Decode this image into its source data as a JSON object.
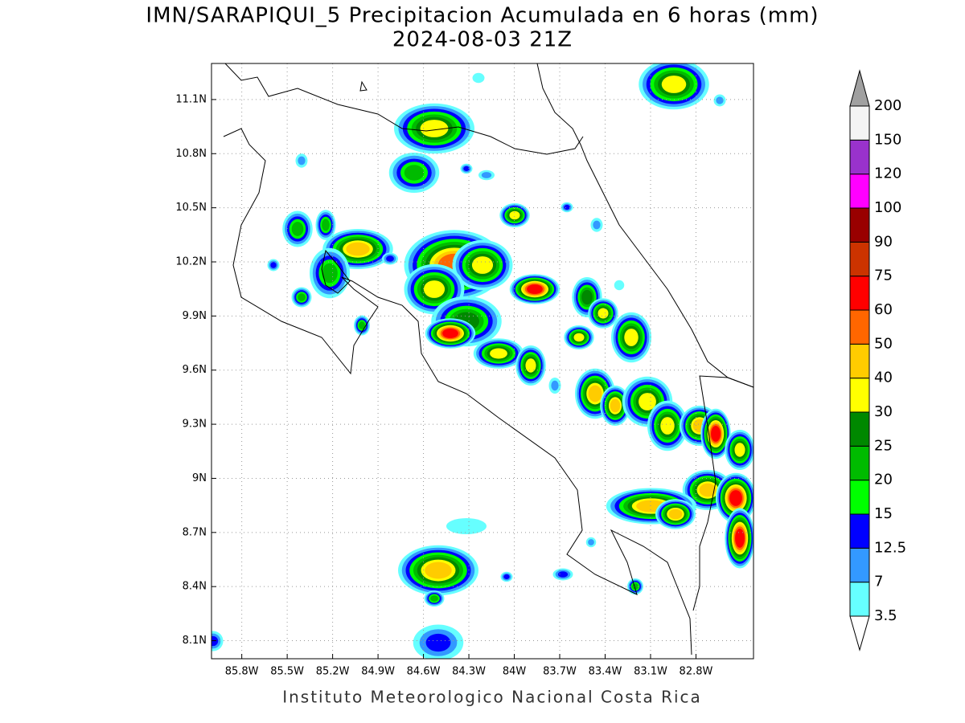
{
  "map": {
    "title": "IMN/SARAPIQUI_5 Precipitacion Acumulada en 6 horas (mm)",
    "subtitle": "2024-08-03 21Z",
    "footer": "Instituto Meteorologico Nacional Costa Rica",
    "xlim": [
      -86.0,
      -82.42
    ],
    "ylim": [
      8.0,
      11.3
    ],
    "xticks": [
      {
        "value": -85.8,
        "label": "85.8W"
      },
      {
        "value": -85.5,
        "label": "85.5W"
      },
      {
        "value": -85.2,
        "label": "85.2W"
      },
      {
        "value": -84.9,
        "label": "84.9W"
      },
      {
        "value": -84.6,
        "label": "84.6W"
      },
      {
        "value": -84.3,
        "label": "84.3W"
      },
      {
        "value": -84.0,
        "label": "84W"
      },
      {
        "value": -83.7,
        "label": "83.7W"
      },
      {
        "value": -83.4,
        "label": "83.4W"
      },
      {
        "value": -83.1,
        "label": "83.1W"
      },
      {
        "value": -82.8,
        "label": "82.8W"
      }
    ],
    "yticks": [
      {
        "value": 8.1,
        "label": "8.1N"
      },
      {
        "value": 8.4,
        "label": "8.4N"
      },
      {
        "value": 8.7,
        "label": "8.7N"
      },
      {
        "value": 9.0,
        "label": "9N"
      },
      {
        "value": 9.3,
        "label": "9.3N"
      },
      {
        "value": 9.6,
        "label": "9.6N"
      },
      {
        "value": 9.9,
        "label": "9.9N"
      },
      {
        "value": 10.2,
        "label": "10.2N"
      },
      {
        "value": 10.5,
        "label": "10.5N"
      },
      {
        "value": 10.8,
        "label": "10.8N"
      },
      {
        "value": 11.1,
        "label": "11.1N"
      }
    ],
    "grid": true,
    "colorbar": {
      "levels": [
        3.5,
        7,
        12.5,
        15,
        20,
        25,
        30,
        40,
        50,
        60,
        75,
        90,
        100,
        120,
        150,
        200
      ],
      "colors": [
        "#66ffff",
        "#3399ff",
        "#0000ff",
        "#00ff00",
        "#00bb00",
        "#008800",
        "#ffff00",
        "#ffcc00",
        "#ff6600",
        "#ff0000",
        "#cc3300",
        "#990000",
        "#ff00ff",
        "#9932cc",
        "#f4f4f4"
      ],
      "over_color": "#a0a0a0",
      "under_color": "#ffffff"
    }
  }
}
